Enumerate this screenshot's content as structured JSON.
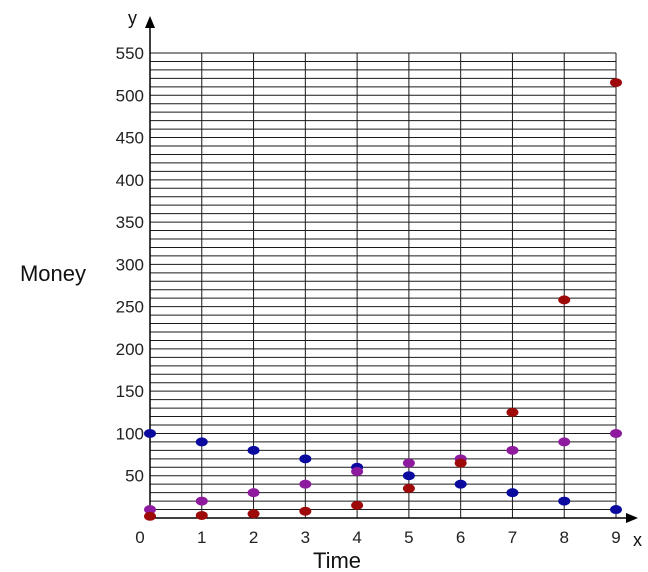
{
  "chart_data": {
    "type": "scatter",
    "xlabel": "Time",
    "ylabel": "Money",
    "x_axis_letter": "x",
    "y_axis_letter": "y",
    "xlim": [
      0,
      9
    ],
    "ylim": [
      0,
      550
    ],
    "x_ticks": [
      "0",
      "1",
      "2",
      "3",
      "4",
      "5",
      "6",
      "7",
      "8",
      "9"
    ],
    "y_ticks": [
      "50",
      "100",
      "150",
      "200",
      "250",
      "300",
      "350",
      "400",
      "450",
      "500",
      "550"
    ],
    "grid": true,
    "legend": "none",
    "series": [
      {
        "color": "#0a0a9e",
        "points": [
          [
            0,
            100
          ],
          [
            1,
            90
          ],
          [
            2,
            80
          ],
          [
            3,
            70
          ],
          [
            4,
            60
          ],
          [
            5,
            50
          ],
          [
            6,
            40
          ],
          [
            7,
            30
          ],
          [
            8,
            20
          ],
          [
            9,
            10
          ]
        ]
      },
      {
        "color": "#8e1a9e",
        "points": [
          [
            0,
            10
          ],
          [
            1,
            20
          ],
          [
            2,
            30
          ],
          [
            3,
            40
          ],
          [
            4,
            55
          ],
          [
            5,
            65
          ],
          [
            6,
            70
          ],
          [
            7,
            80
          ],
          [
            8,
            90
          ],
          [
            9,
            100
          ]
        ]
      },
      {
        "color": "#9e0a0a",
        "points": [
          [
            0,
            2
          ],
          [
            1,
            3
          ],
          [
            2,
            5
          ],
          [
            3,
            8
          ],
          [
            4,
            15
          ],
          [
            5,
            35
          ],
          [
            6,
            65
          ],
          [
            7,
            125
          ],
          [
            8,
            258
          ],
          [
            9,
            515
          ]
        ]
      }
    ]
  }
}
